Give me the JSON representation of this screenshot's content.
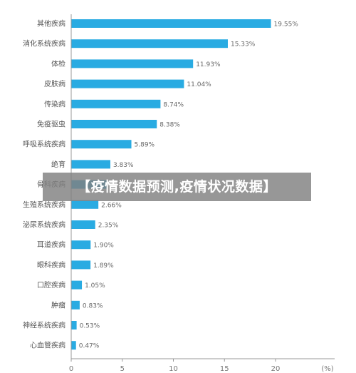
{
  "overlay_title": "【疫情数据预测,疫情状况数据】",
  "chart_data": {
    "type": "bar",
    "orientation": "horizontal",
    "categories": [
      "其他疾病",
      "消化系统疾病",
      "体检",
      "皮肤病",
      "传染病",
      "免疫驱虫",
      "呼吸系统疾病",
      "绝育",
      "骨科疾病",
      "生殖系统疾病",
      "泌尿系统疾病",
      "耳道疾病",
      "眼科疾病",
      "口腔疾病",
      "肿瘤",
      "神经系统疾病",
      "心血管疾病"
    ],
    "values": [
      19.55,
      15.33,
      11.93,
      11.04,
      8.74,
      8.38,
      5.89,
      3.83,
      3.5,
      2.66,
      2.35,
      1.9,
      1.89,
      1.05,
      0.83,
      0.53,
      0.47
    ],
    "value_labels": [
      "19.55%",
      "15.33%",
      "11.93%",
      "11.04%",
      "8.74%",
      "8.38%",
      "5.89%",
      "3.83%",
      "",
      "2.66%",
      "2.35%",
      "1.90%",
      "1.89%",
      "1.05%",
      "0.83%",
      "0.53%",
      "0.47%"
    ],
    "xlim": [
      0,
      25
    ],
    "xticks": [
      "0",
      "5",
      "10",
      "15",
      "20"
    ],
    "xticks_values": [
      0,
      5,
      10,
      15,
      20
    ],
    "unit_label": "(%)",
    "bar_color": "#29abe2",
    "grid": false
  }
}
